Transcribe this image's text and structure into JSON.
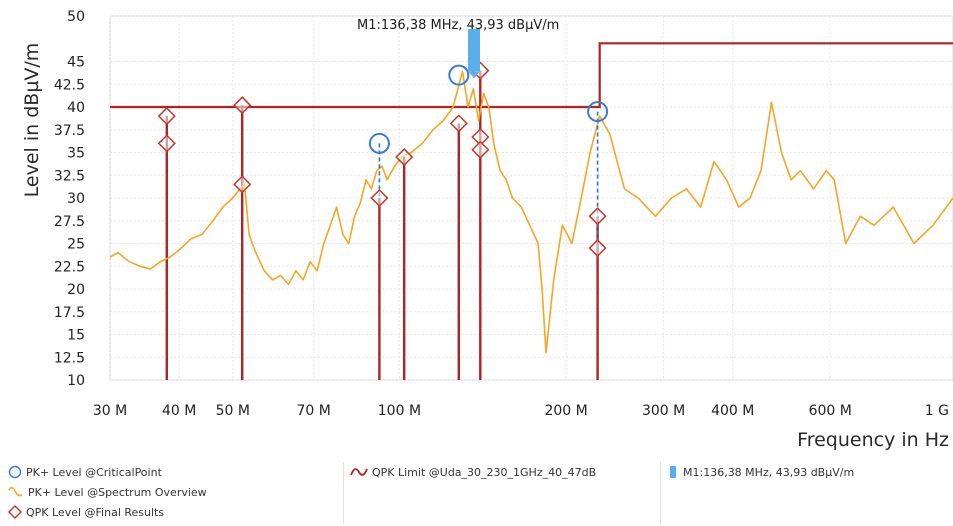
{
  "chart_data": {
    "type": "line",
    "xlabel": "Frequency in Hz",
    "ylabel": "Level in dBµV/m",
    "xscale": "log",
    "xlim": [
      30000000,
      1000000000
    ],
    "ylim": [
      10,
      50
    ],
    "grid": true,
    "x_tick_values": [
      30000000,
      40000000,
      50000000,
      70000000,
      100000000,
      200000000,
      300000000,
      400000000,
      600000000,
      1000000000
    ],
    "x_tick_labels": [
      "30 M",
      "40 M",
      "50 M",
      "70 M",
      "100 M",
      "200 M",
      "300 M",
      "400 M",
      "600 M",
      "1 G"
    ],
    "y_tick_values": [
      10,
      12.5,
      15,
      17.5,
      20,
      22.5,
      25,
      27.5,
      30,
      32.5,
      35,
      37.5,
      40,
      42.5,
      45,
      50
    ],
    "y_tick_labels": [
      "10",
      "12.5",
      "15",
      "17.5",
      "20",
      "22.5",
      "25",
      "27.5",
      "30",
      "32.5",
      "35",
      "37.5",
      "40",
      "42.5",
      "45",
      "50"
    ],
    "colors": {
      "spectrum": "#f5a623",
      "limit": "#b22222",
      "final_marker": "#c0392b",
      "critical_marker": "#3a7bd5",
      "dash": "#2a6fd6",
      "marker_flag": "#5aaeea"
    },
    "series": [
      {
        "name": "PK+ Level @Spectrum Overview",
        "x": [
          30000000,
          31000000,
          32500000,
          34000000,
          35500000,
          37000000,
          38500000,
          40000000,
          42000000,
          44000000,
          46000000,
          48000000,
          50000000,
          51500000,
          52500000,
          53500000,
          55000000,
          57000000,
          59000000,
          61000000,
          63000000,
          65000000,
          67000000,
          69000000,
          71000000,
          73000000,
          75000000,
          77000000,
          79000000,
          81000000,
          83000000,
          85000000,
          87000000,
          89000000,
          91000000,
          93000000,
          95000000,
          98000000,
          101000000,
          105000000,
          110000000,
          115000000,
          120000000,
          125000000,
          130000000,
          133000000,
          136000000,
          139000000,
          142000000,
          145000000,
          148000000,
          152000000,
          156000000,
          160000000,
          166000000,
          172000000,
          178000000,
          181000000,
          184000000,
          190000000,
          197000000,
          205000000,
          213000000,
          221000000,
          230000000,
          240000000,
          255000000,
          270000000,
          290000000,
          310000000,
          330000000,
          350000000,
          370000000,
          390000000,
          410000000,
          430000000,
          450000000,
          470000000,
          490000000,
          510000000,
          530000000,
          560000000,
          590000000,
          610000000,
          640000000,
          680000000,
          720000000,
          780000000,
          850000000,
          920000000,
          1000000000
        ],
        "values": [
          23.5,
          24,
          23,
          22.5,
          22.2,
          23,
          23.5,
          24.3,
          25.5,
          26,
          27.5,
          29,
          30,
          31,
          31.5,
          26,
          24,
          22,
          21,
          21.5,
          20.5,
          22,
          21,
          23,
          22,
          25,
          27,
          29,
          26,
          25,
          28,
          29.5,
          32,
          31,
          33,
          33.5,
          32,
          33.5,
          34.5,
          35,
          36,
          37.5,
          38.5,
          40,
          43.9,
          40,
          42,
          38.5,
          41.5,
          40,
          36,
          33,
          32,
          30,
          29,
          27,
          25,
          20,
          13,
          21,
          27,
          25,
          30,
          35,
          39,
          37,
          31,
          30,
          28,
          30,
          31,
          29,
          34,
          32,
          29,
          30,
          33,
          40.5,
          35,
          32,
          33,
          31,
          33,
          32,
          25,
          28,
          27,
          29,
          25,
          27,
          30
        ]
      },
      {
        "name": "QPK Limit @Uda_30_230_1GHz_40_47dB",
        "x": [
          30000000,
          230000000,
          230000000,
          1000000000
        ],
        "values": [
          40,
          40,
          47,
          47
        ]
      }
    ],
    "critical_points": {
      "name": "PK+ Level @CriticalPoint",
      "x": [
        92000000,
        128000000,
        228000000
      ],
      "values": [
        36,
        43.5,
        39.5
      ]
    },
    "final_results": {
      "name": "QPK Level @Final Results",
      "x": [
        38000000,
        38000000,
        52000000,
        52000000,
        92000000,
        102000000,
        128000000,
        140000000,
        140000000,
        140000000,
        228000000,
        228000000
      ],
      "values": [
        39,
        36,
        40.2,
        31.5,
        30,
        34.5,
        38.2,
        44,
        36.7,
        35.3,
        28,
        24.5
      ]
    },
    "stems": [
      {
        "x": 38000000,
        "top": 39
      },
      {
        "x": 52000000,
        "top": 40.2
      },
      {
        "x": 92000000,
        "top": 30
      },
      {
        "x": 102000000,
        "top": 34.5
      },
      {
        "x": 128000000,
        "top": 38.2
      },
      {
        "x": 140000000,
        "top": 44
      },
      {
        "x": 228000000,
        "top": 28
      }
    ],
    "dashed_links": [
      {
        "x": 92000000,
        "from": 36,
        "to": 30
      },
      {
        "x": 228000000,
        "from": 39.5,
        "to": 24.5
      }
    ],
    "marker": {
      "label": "M1:136,38 MHz, 43,93 dBµV/m",
      "x": 136380000,
      "value": 43.93
    },
    "legend": {
      "critical": "PK+ Level @CriticalPoint",
      "spectrum": "PK+ Level @Spectrum Overview",
      "final": "QPK Level @Final Results",
      "limit": "QPK Limit @Uda_30_230_1GHz_40_47dB",
      "marker": "M1:136,38 MHz, 43,93 dBµV/m"
    }
  }
}
